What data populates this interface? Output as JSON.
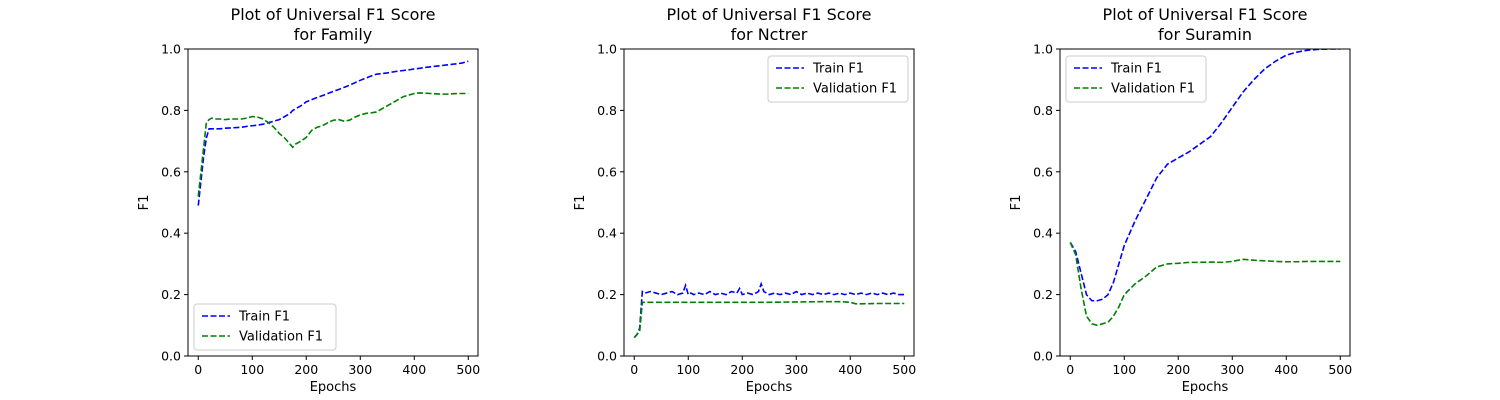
{
  "colors": {
    "train": "#0000ff",
    "validation": "#008000",
    "axis": "#000000",
    "legend_border": "#cccccc"
  },
  "chart_data": [
    {
      "type": "line",
      "title": "Plot of Universal F1 Score",
      "subtitle": "for Family",
      "xlabel": "Epochs",
      "ylabel": "F1",
      "xlim": [
        -19,
        518
      ],
      "ylim": [
        0,
        1.0
      ],
      "xticks": [
        "0",
        "100",
        "200",
        "300",
        "400",
        "500"
      ],
      "yticks": [
        "0.0",
        "0.2",
        "0.4",
        "0.6",
        "0.8",
        "1.0"
      ],
      "legend": "lower-left",
      "series": [
        {
          "name": "Train F1",
          "color": "#0000ff",
          "dash": "dashed",
          "x": [
            0,
            5,
            10,
            15,
            20,
            25,
            30,
            40,
            50,
            60,
            70,
            80,
            90,
            100,
            110,
            120,
            130,
            140,
            150,
            160,
            170,
            175,
            180,
            190,
            200,
            210,
            220,
            230,
            240,
            250,
            260,
            270,
            280,
            290,
            300,
            310,
            320,
            330,
            340,
            350,
            360,
            370,
            380,
            390,
            400,
            410,
            420,
            430,
            440,
            450,
            460,
            470,
            480,
            490,
            500
          ],
          "values": [
            0.49,
            0.57,
            0.65,
            0.71,
            0.74,
            0.74,
            0.74,
            0.74,
            0.742,
            0.743,
            0.744,
            0.745,
            0.748,
            0.75,
            0.752,
            0.755,
            0.76,
            0.765,
            0.77,
            0.78,
            0.79,
            0.8,
            0.805,
            0.815,
            0.828,
            0.835,
            0.842,
            0.848,
            0.855,
            0.862,
            0.868,
            0.875,
            0.882,
            0.89,
            0.898,
            0.905,
            0.912,
            0.918,
            0.92,
            0.922,
            0.925,
            0.928,
            0.93,
            0.932,
            0.935,
            0.937,
            0.94,
            0.942,
            0.944,
            0.946,
            0.948,
            0.95,
            0.952,
            0.955,
            0.96
          ]
        },
        {
          "name": "Validation F1",
          "color": "#008000",
          "dash": "dashed",
          "x": [
            0,
            5,
            10,
            15,
            20,
            25,
            30,
            40,
            50,
            60,
            70,
            80,
            90,
            100,
            110,
            120,
            130,
            140,
            150,
            160,
            170,
            175,
            180,
            190,
            200,
            210,
            220,
            230,
            240,
            250,
            260,
            270,
            280,
            290,
            300,
            310,
            320,
            330,
            340,
            350,
            360,
            370,
            380,
            390,
            400,
            410,
            420,
            430,
            440,
            450,
            460,
            470,
            480,
            490,
            500
          ],
          "values": [
            0.52,
            0.6,
            0.68,
            0.76,
            0.77,
            0.775,
            0.772,
            0.772,
            0.77,
            0.772,
            0.772,
            0.772,
            0.775,
            0.78,
            0.778,
            0.772,
            0.76,
            0.745,
            0.725,
            0.71,
            0.69,
            0.68,
            0.69,
            0.7,
            0.712,
            0.735,
            0.745,
            0.75,
            0.76,
            0.768,
            0.77,
            0.765,
            0.768,
            0.778,
            0.785,
            0.79,
            0.792,
            0.795,
            0.805,
            0.815,
            0.825,
            0.835,
            0.845,
            0.85,
            0.855,
            0.857,
            0.856,
            0.855,
            0.854,
            0.853,
            0.853,
            0.854,
            0.855,
            0.855,
            0.855
          ]
        }
      ]
    },
    {
      "type": "line",
      "title": "Plot of Universal F1 Score",
      "subtitle": "for Nctrer",
      "xlabel": "Epochs",
      "ylabel": "F1",
      "xlim": [
        -19,
        518
      ],
      "ylim": [
        0,
        1.0
      ],
      "xticks": [
        "0",
        "100",
        "200",
        "300",
        "400",
        "500"
      ],
      "yticks": [
        "0.0",
        "0.2",
        "0.4",
        "0.6",
        "0.8",
        "1.0"
      ],
      "legend": "upper-right",
      "series": [
        {
          "name": "Train F1",
          "color": "#0000ff",
          "dash": "dashed",
          "x": [
            0,
            5,
            10,
            15,
            20,
            30,
            40,
            50,
            60,
            70,
            80,
            90,
            95,
            100,
            105,
            110,
            120,
            130,
            140,
            150,
            160,
            170,
            180,
            190,
            195,
            200,
            210,
            220,
            230,
            235,
            240,
            250,
            260,
            270,
            280,
            290,
            300,
            310,
            320,
            330,
            340,
            350,
            360,
            370,
            380,
            390,
            400,
            410,
            420,
            430,
            440,
            450,
            460,
            470,
            480,
            490,
            500
          ],
          "values": [
            0.06,
            0.07,
            0.09,
            0.21,
            0.205,
            0.21,
            0.205,
            0.2,
            0.205,
            0.21,
            0.2,
            0.205,
            0.23,
            0.2,
            0.205,
            0.2,
            0.205,
            0.2,
            0.21,
            0.2,
            0.205,
            0.2,
            0.21,
            0.205,
            0.22,
            0.2,
            0.205,
            0.2,
            0.21,
            0.235,
            0.21,
            0.2,
            0.205,
            0.2,
            0.205,
            0.2,
            0.21,
            0.2,
            0.205,
            0.2,
            0.205,
            0.2,
            0.205,
            0.2,
            0.205,
            0.2,
            0.205,
            0.2,
            0.205,
            0.2,
            0.205,
            0.2,
            0.205,
            0.2,
            0.205,
            0.2,
            0.2
          ]
        },
        {
          "name": "Validation F1",
          "color": "#008000",
          "dash": "dashed",
          "x": [
            0,
            5,
            10,
            15,
            20,
            50,
            100,
            150,
            200,
            250,
            300,
            350,
            380,
            400,
            410,
            420,
            450,
            500
          ],
          "values": [
            0.06,
            0.07,
            0.08,
            0.175,
            0.175,
            0.175,
            0.175,
            0.175,
            0.175,
            0.175,
            0.176,
            0.177,
            0.177,
            0.175,
            0.17,
            0.17,
            0.171,
            0.171
          ]
        }
      ]
    },
    {
      "type": "line",
      "title": "Plot of Universal F1 Score",
      "subtitle": "for Suramin",
      "xlabel": "Epochs",
      "ylabel": "F1",
      "xlim": [
        -19,
        518
      ],
      "ylim": [
        0,
        1.0
      ],
      "xticks": [
        "0",
        "100",
        "200",
        "300",
        "400",
        "500"
      ],
      "yticks": [
        "0.0",
        "0.2",
        "0.4",
        "0.6",
        "0.8",
        "1.0"
      ],
      "legend": "upper-left",
      "series": [
        {
          "name": "Train F1",
          "color": "#0000ff",
          "dash": "dashed",
          "x": [
            0,
            10,
            20,
            30,
            40,
            50,
            60,
            70,
            80,
            90,
            100,
            120,
            140,
            160,
            180,
            200,
            220,
            240,
            260,
            280,
            300,
            320,
            340,
            360,
            380,
            400,
            420,
            440,
            460,
            480,
            500
          ],
          "values": [
            0.37,
            0.34,
            0.27,
            0.2,
            0.18,
            0.18,
            0.185,
            0.2,
            0.24,
            0.3,
            0.36,
            0.44,
            0.51,
            0.58,
            0.625,
            0.645,
            0.665,
            0.69,
            0.715,
            0.76,
            0.81,
            0.86,
            0.9,
            0.935,
            0.96,
            0.98,
            0.99,
            0.996,
            0.999,
            1.0,
            1.0
          ]
        },
        {
          "name": "Validation F1",
          "color": "#008000",
          "dash": "dashed",
          "x": [
            0,
            10,
            20,
            30,
            40,
            50,
            60,
            70,
            80,
            90,
            100,
            120,
            140,
            160,
            180,
            200,
            220,
            240,
            260,
            280,
            300,
            320,
            340,
            360,
            380,
            400,
            420,
            440,
            460,
            480,
            500
          ],
          "values": [
            0.37,
            0.33,
            0.22,
            0.13,
            0.105,
            0.1,
            0.105,
            0.11,
            0.13,
            0.16,
            0.2,
            0.235,
            0.26,
            0.29,
            0.3,
            0.302,
            0.305,
            0.305,
            0.306,
            0.305,
            0.308,
            0.315,
            0.312,
            0.31,
            0.308,
            0.307,
            0.307,
            0.308,
            0.308,
            0.308,
            0.308
          ]
        }
      ]
    }
  ]
}
